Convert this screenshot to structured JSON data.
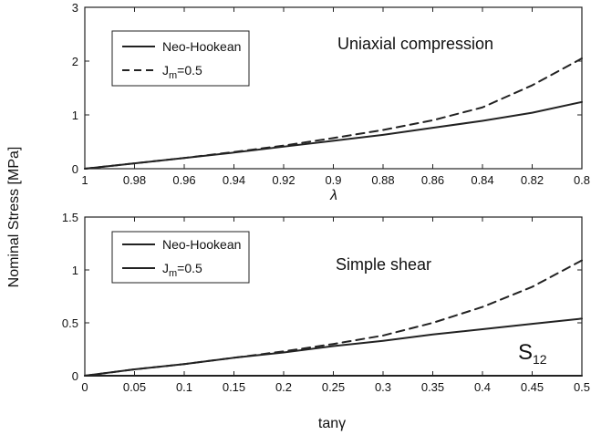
{
  "figure": {
    "ylabel": "Nominal Stress [MPa]"
  },
  "chart_data": [
    {
      "type": "line",
      "title": "",
      "annotation": "Uniaxial compression",
      "xlabel": "λ",
      "ylabel": "Nominal Stress [MPa]",
      "xlim": [
        1.0,
        0.8
      ],
      "ylim": [
        0,
        3
      ],
      "x_reversed": true,
      "xticks": [
        "1",
        "0.98",
        "0.96",
        "0.94",
        "0.92",
        "0.9",
        "0.88",
        "0.86",
        "0.84",
        "0.82",
        "0.8"
      ],
      "yticks": [
        "0",
        "1",
        "2",
        "3"
      ],
      "legend_position": "top-left",
      "grid": false,
      "series": [
        {
          "name": "Neo-Hookean",
          "style": "solid",
          "color": "#222222",
          "x": [
            1.0,
            0.98,
            0.96,
            0.94,
            0.92,
            0.9,
            0.88,
            0.86,
            0.84,
            0.82,
            0.8
          ],
          "y": [
            0.0,
            0.1,
            0.2,
            0.3,
            0.41,
            0.52,
            0.63,
            0.76,
            0.89,
            1.04,
            1.24
          ]
        },
        {
          "name": "J_m=0.5",
          "style": "dashed",
          "color": "#222222",
          "x": [
            1.0,
            0.98,
            0.96,
            0.94,
            0.92,
            0.9,
            0.88,
            0.86,
            0.84,
            0.82,
            0.8
          ],
          "y": [
            0.0,
            0.1,
            0.2,
            0.31,
            0.43,
            0.57,
            0.72,
            0.9,
            1.14,
            1.55,
            2.05
          ]
        }
      ]
    },
    {
      "type": "line",
      "title": "",
      "annotation": "Simple shear",
      "secondary_label": "S_12",
      "xlabel": "tanγ",
      "ylabel": "Nominal Stress [MPa]",
      "xlim": [
        0,
        0.5
      ],
      "ylim": [
        0,
        1.5
      ],
      "xticks": [
        "0",
        "0.05",
        "0.1",
        "0.15",
        "0.2",
        "0.25",
        "0.3",
        "0.35",
        "0.4",
        "0.45",
        "0.5"
      ],
      "yticks": [
        "0",
        "0.5",
        "1",
        "1.5"
      ],
      "legend_position": "top-left",
      "grid": false,
      "series": [
        {
          "name": "Neo-Hookean",
          "style": "solid",
          "color": "#222222",
          "x": [
            0,
            0.05,
            0.1,
            0.15,
            0.2,
            0.25,
            0.3,
            0.35,
            0.4,
            0.45,
            0.5
          ],
          "y": [
            0,
            0.06,
            0.11,
            0.17,
            0.22,
            0.28,
            0.33,
            0.39,
            0.44,
            0.49,
            0.54
          ]
        },
        {
          "name": "J_m=0.5",
          "style": "solid",
          "color": "#222222",
          "x": [
            0,
            0.05,
            0.1,
            0.15,
            0.2,
            0.25,
            0.3,
            0.35,
            0.4,
            0.45,
            0.5
          ],
          "y": [
            0,
            0.0,
            0.0,
            0.0,
            0.0,
            0.0,
            0.0,
            0.0,
            0.0,
            0.0,
            0.0
          ]
        },
        {
          "name": "",
          "style": "dashed",
          "color": "#222222",
          "x": [
            0,
            0.05,
            0.1,
            0.15,
            0.2,
            0.25,
            0.3,
            0.35,
            0.4,
            0.45,
            0.5
          ],
          "y": [
            0,
            0.06,
            0.11,
            0.17,
            0.23,
            0.3,
            0.38,
            0.5,
            0.65,
            0.84,
            1.09
          ]
        }
      ]
    }
  ]
}
